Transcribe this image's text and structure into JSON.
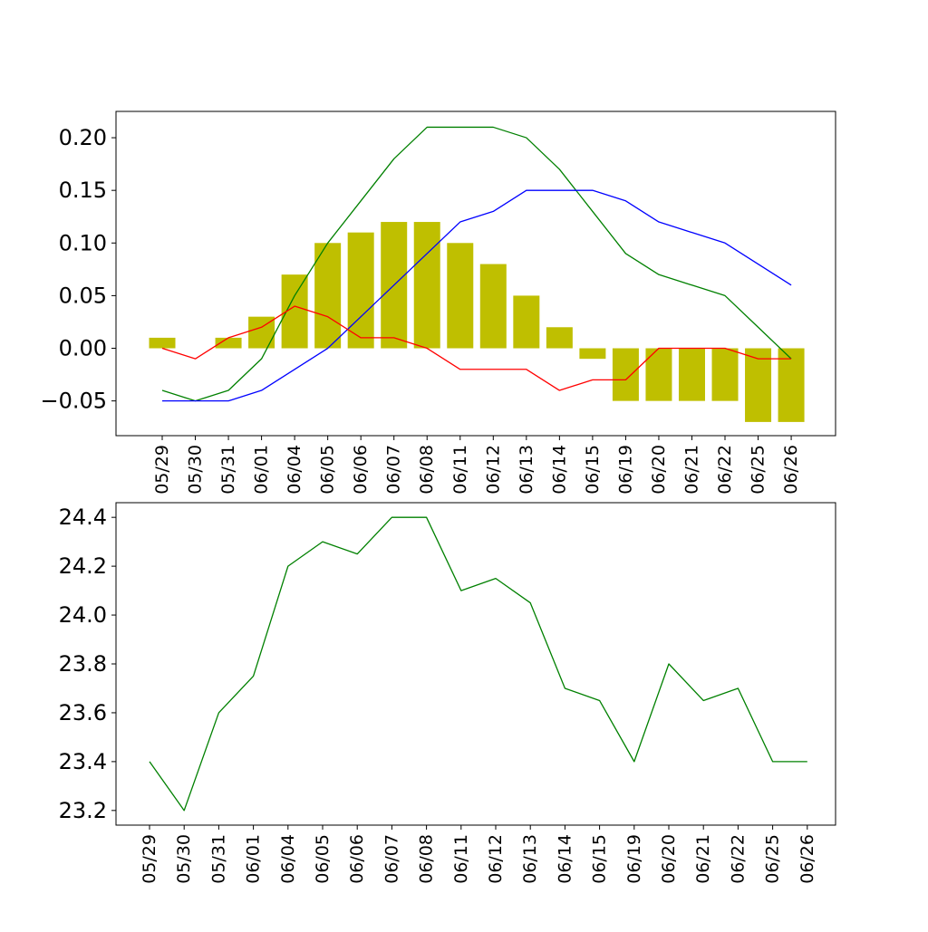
{
  "chart_data": [
    {
      "type": "bar+line",
      "title": "",
      "xlabel": "",
      "ylabel": "",
      "categories": [
        "05/29",
        "05/30",
        "05/31",
        "06/01",
        "06/04",
        "06/05",
        "06/06",
        "06/07",
        "06/08",
        "06/11",
        "06/12",
        "06/13",
        "06/14",
        "06/15",
        "06/19",
        "06/20",
        "06/21",
        "06/22",
        "06/25",
        "06/26"
      ],
      "ylim": [
        -0.083,
        0.225
      ],
      "yticks": [
        -0.05,
        0.0,
        0.05,
        0.1,
        0.15,
        0.2
      ],
      "ytick_labels": [
        "−0.05",
        "0.00",
        "0.05",
        "0.10",
        "0.15",
        "0.20"
      ],
      "grid": false,
      "bars": {
        "color": "#bfbf00",
        "values": [
          0.01,
          null,
          0.01,
          0.03,
          0.07,
          0.1,
          0.11,
          0.12,
          0.12,
          0.1,
          0.08,
          0.05,
          0.02,
          -0.01,
          -0.05,
          -0.05,
          -0.05,
          -0.05,
          -0.07,
          -0.07
        ]
      },
      "series": [
        {
          "color": "#008000",
          "values": [
            -0.04,
            -0.05,
            -0.04,
            -0.01,
            0.05,
            0.1,
            0.14,
            0.18,
            0.21,
            0.21,
            0.21,
            0.2,
            0.17,
            0.13,
            0.09,
            0.07,
            0.06,
            0.05,
            0.02,
            -0.01
          ]
        },
        {
          "color": "#0000ff",
          "values": [
            -0.05,
            -0.05,
            -0.05,
            -0.04,
            -0.02,
            0.0,
            0.03,
            0.06,
            0.09,
            0.12,
            0.13,
            0.15,
            0.15,
            0.15,
            0.14,
            0.12,
            0.11,
            0.1,
            0.08,
            0.06
          ]
        },
        {
          "color": "#ff0000",
          "values": [
            0.0,
            -0.01,
            0.01,
            0.02,
            0.04,
            0.03,
            0.01,
            0.01,
            0.0,
            -0.02,
            -0.02,
            -0.02,
            -0.04,
            -0.03,
            -0.03,
            0.0,
            0.0,
            0.0,
            -0.01,
            -0.01
          ]
        }
      ]
    },
    {
      "type": "line",
      "title": "",
      "xlabel": "",
      "ylabel": "",
      "categories": [
        "05/29",
        "05/30",
        "05/31",
        "06/01",
        "06/04",
        "06/05",
        "06/06",
        "06/07",
        "06/08",
        "06/11",
        "06/12",
        "06/13",
        "06/14",
        "06/15",
        "06/19",
        "06/20",
        "06/21",
        "06/22",
        "06/25",
        "06/26"
      ],
      "ylim": [
        23.14,
        24.46
      ],
      "yticks": [
        23.2,
        23.4,
        23.6,
        23.8,
        24.0,
        24.2,
        24.4
      ],
      "ytick_labels": [
        "23.2",
        "23.4",
        "23.6",
        "23.8",
        "24.0",
        "24.2",
        "24.4"
      ],
      "grid": false,
      "series": [
        {
          "color": "#008000",
          "values": [
            23.4,
            23.2,
            23.6,
            23.75,
            24.2,
            24.3,
            24.25,
            24.4,
            24.4,
            24.1,
            24.15,
            24.05,
            23.7,
            23.65,
            23.4,
            23.8,
            23.65,
            23.7,
            23.4,
            23.4
          ]
        }
      ]
    }
  ]
}
